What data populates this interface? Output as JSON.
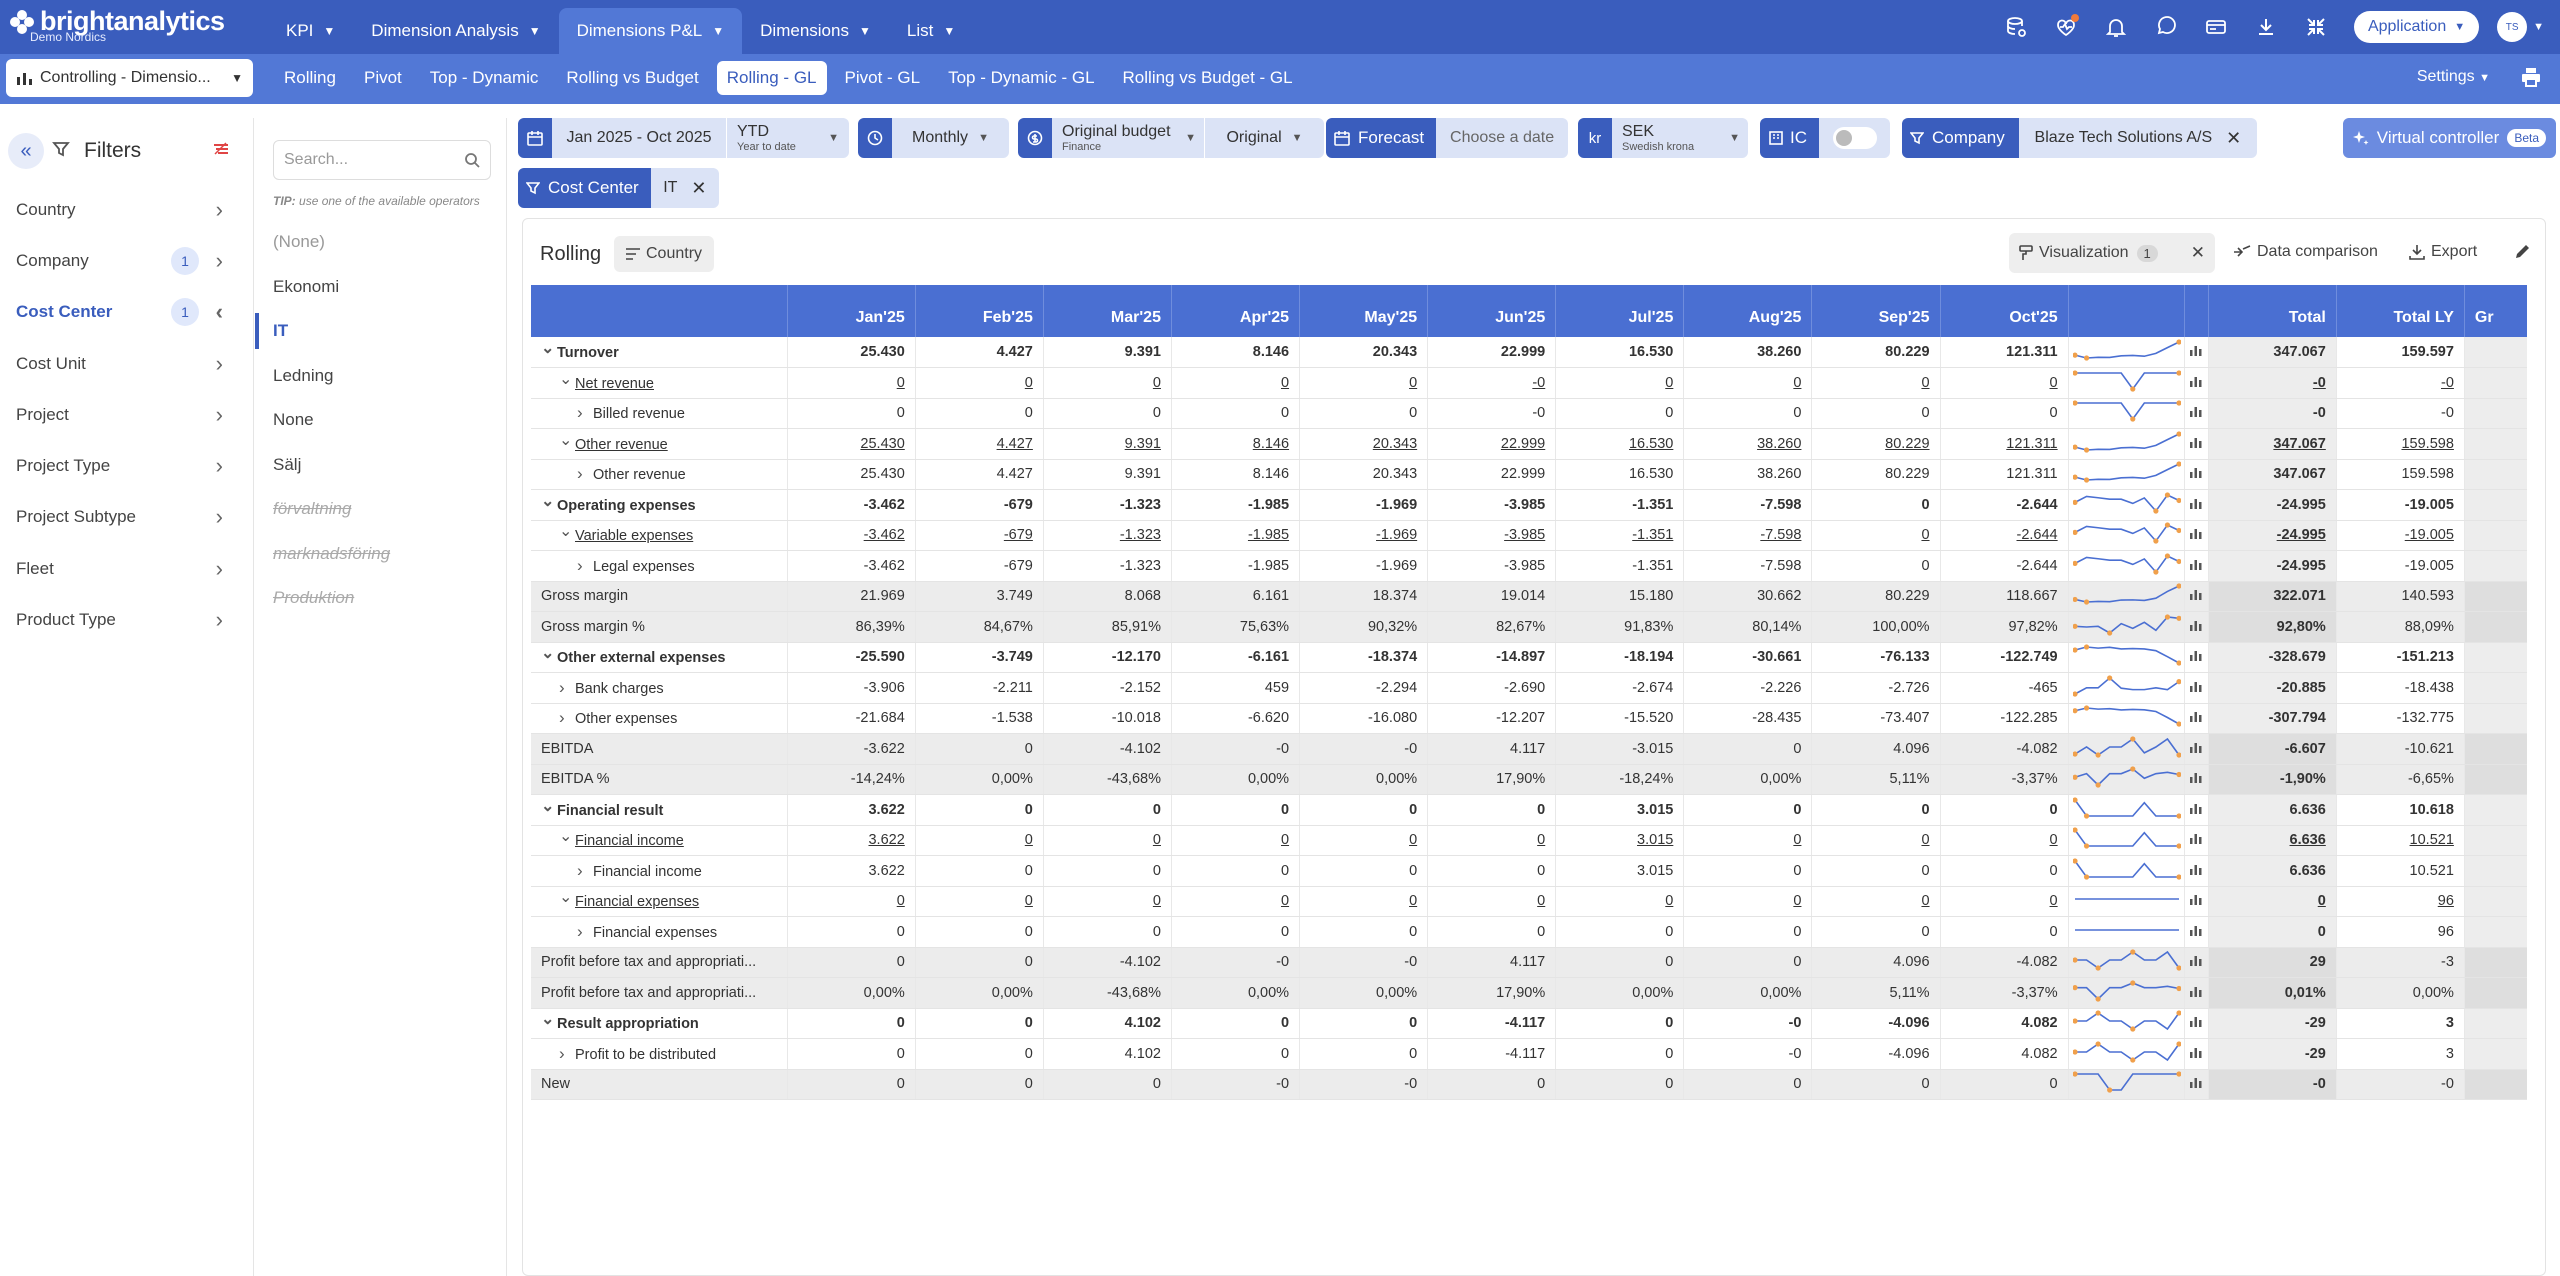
{
  "brand": {
    "name": "brightanalytics",
    "subtitle": "Demo Nordics"
  },
  "main_nav": [
    {
      "label": "KPI",
      "active": false
    },
    {
      "label": "Dimension Analysis",
      "active": false
    },
    {
      "label": "Dimensions P&L",
      "active": true
    },
    {
      "label": "Dimensions",
      "active": false
    },
    {
      "label": "List",
      "active": false
    }
  ],
  "top_right": {
    "application_label": "Application",
    "avatar_initials": "TS"
  },
  "context_select": "Controlling - Dimensio...",
  "sub_tabs": [
    {
      "label": "Rolling",
      "active": false
    },
    {
      "label": "Pivot",
      "active": false
    },
    {
      "label": "Top - Dynamic",
      "active": false
    },
    {
      "label": "Rolling vs Budget",
      "active": false
    },
    {
      "label": "Rolling - GL",
      "active": true
    },
    {
      "label": "Pivot - GL",
      "active": false
    },
    {
      "label": "Top - Dynamic - GL",
      "active": false
    },
    {
      "label": "Rolling vs Budget - GL",
      "active": false
    }
  ],
  "settings_label": "Settings",
  "filters": {
    "title": "Filters",
    "items": [
      {
        "label": "Country",
        "badge": "",
        "active": false
      },
      {
        "label": "Company",
        "badge": "1",
        "active": false
      },
      {
        "label": "Cost Center",
        "badge": "1",
        "active": true
      },
      {
        "label": "Cost Unit",
        "badge": "",
        "active": false
      },
      {
        "label": "Project",
        "badge": "",
        "active": false
      },
      {
        "label": "Project Type",
        "badge": "",
        "active": false
      },
      {
        "label": "Project Subtype",
        "badge": "",
        "active": false
      },
      {
        "label": "Fleet",
        "badge": "",
        "active": false
      },
      {
        "label": "Product Type",
        "badge": "",
        "active": false
      }
    ]
  },
  "value_list": {
    "search_placeholder": "Search...",
    "tip_prefix": "TIP:",
    "tip_text": "use one of the available operators",
    "values": [
      {
        "label": "(None)",
        "state": "muted"
      },
      {
        "label": "Ekonomi",
        "state": "normal"
      },
      {
        "label": "IT",
        "state": "selected"
      },
      {
        "label": "Ledning",
        "state": "normal"
      },
      {
        "label": "None",
        "state": "normal"
      },
      {
        "label": "Sälj",
        "state": "normal"
      },
      {
        "label": "förvaltning",
        "state": "struck"
      },
      {
        "label": "marknadsföring",
        "state": "struck"
      },
      {
        "label": "Produktion",
        "state": "struck"
      }
    ]
  },
  "controls": {
    "period": "Jan 2025 - Oct 2025",
    "ytd": "YTD",
    "ytd_sub": "Year to date",
    "interval": "Monthly",
    "budget": "Original budget",
    "budget_sub": "Finance",
    "budget_version": "Original",
    "forecast_label": "Forecast",
    "forecast_placeholder": "Choose a date",
    "currency_symbol": "kr",
    "currency": "SEK",
    "currency_sub": "Swedish krona",
    "ic_label": "IC",
    "company_label": "Company",
    "company_value": "Blaze Tech Solutions A/S",
    "cost_center_label": "Cost Center",
    "cost_center_value": "IT",
    "virtual_controller": "Virtual controller",
    "beta": "Beta"
  },
  "panel": {
    "title": "Rolling",
    "group_chip": "Country",
    "visualization": "Visualization",
    "visualization_count": "1",
    "data_comparison": "Data comparison",
    "export": "Export"
  },
  "table": {
    "columns": [
      "Jan'25",
      "Feb'25",
      "Mar'25",
      "Apr'25",
      "May'25",
      "Jun'25",
      "Jul'25",
      "Aug'25",
      "Sep'25",
      "Oct'25"
    ],
    "total_header": "Total",
    "total_ly_header": "Total LY",
    "extra_header": "Gr",
    "rows": [
      {
        "label": "Turnover",
        "level": 0,
        "caret": "down",
        "style": "bold",
        "values": [
          "25.430",
          "4.427",
          "9.391",
          "8.146",
          "20.343",
          "22.999",
          "16.530",
          "38.260",
          "80.229",
          "121.311"
        ],
        "total": "347.067",
        "total_ly": "159.597",
        "spark": [
          25,
          4,
          9,
          8,
          20,
          23,
          17,
          38,
          80,
          121
        ]
      },
      {
        "label": "Net revenue",
        "level": 1,
        "caret": "down",
        "style": "ul",
        "values": [
          "0",
          "0",
          "0",
          "0",
          "0",
          "-0",
          "0",
          "0",
          "0",
          "0"
        ],
        "total": "-0",
        "total_ly": "-0",
        "spark": [
          0,
          0,
          0,
          0,
          0,
          -1,
          0,
          0,
          0,
          0
        ]
      },
      {
        "label": "Billed revenue",
        "level": 2,
        "caret": "right",
        "style": "",
        "values": [
          "0",
          "0",
          "0",
          "0",
          "0",
          "-0",
          "0",
          "0",
          "0",
          "0"
        ],
        "total": "-0",
        "total_ly": "-0",
        "spark": [
          0,
          0,
          0,
          0,
          0,
          -1,
          0,
          0,
          0,
          0
        ]
      },
      {
        "label": "Other revenue",
        "level": 1,
        "caret": "down",
        "style": "ul",
        "values": [
          "25.430",
          "4.427",
          "9.391",
          "8.146",
          "20.343",
          "22.999",
          "16.530",
          "38.260",
          "80.229",
          "121.311"
        ],
        "total": "347.067",
        "total_ly": "159.598",
        "spark": [
          25,
          4,
          9,
          8,
          20,
          23,
          17,
          38,
          80,
          121
        ]
      },
      {
        "label": "Other revenue",
        "level": 2,
        "caret": "right",
        "style": "",
        "values": [
          "25.430",
          "4.427",
          "9.391",
          "8.146",
          "20.343",
          "22.999",
          "16.530",
          "38.260",
          "80.229",
          "121.311"
        ],
        "total": "347.067",
        "total_ly": "159.598",
        "spark": [
          25,
          4,
          9,
          8,
          20,
          23,
          17,
          38,
          80,
          121
        ]
      },
      {
        "label": "Operating expenses",
        "level": 0,
        "caret": "down",
        "style": "bold",
        "values": [
          "-3.462",
          "-679",
          "-1.323",
          "-1.985",
          "-1.969",
          "-3.985",
          "-1.351",
          "-7.598",
          "0",
          "-2.644"
        ],
        "total": "-24.995",
        "total_ly": "-19.005",
        "spark": [
          -3.5,
          -0.7,
          -1.3,
          -2,
          -2,
          -4,
          -1.4,
          -7.6,
          0,
          -2.6
        ]
      },
      {
        "label": "Variable expenses",
        "level": 1,
        "caret": "down",
        "style": "ul",
        "values": [
          "-3.462",
          "-679",
          "-1.323",
          "-1.985",
          "-1.969",
          "-3.985",
          "-1.351",
          "-7.598",
          "0",
          "-2.644"
        ],
        "total": "-24.995",
        "total_ly": "-19.005",
        "spark": [
          -3.5,
          -0.7,
          -1.3,
          -2,
          -2,
          -4,
          -1.4,
          -7.6,
          0,
          -2.6
        ]
      },
      {
        "label": "Legal expenses",
        "level": 2,
        "caret": "right",
        "style": "",
        "values": [
          "-3.462",
          "-679",
          "-1.323",
          "-1.985",
          "-1.969",
          "-3.985",
          "-1.351",
          "-7.598",
          "0",
          "-2.644"
        ],
        "total": "-24.995",
        "total_ly": "-19.005",
        "spark": [
          -3.5,
          -0.7,
          -1.3,
          -2,
          -2,
          -4,
          -1.4,
          -7.6,
          0,
          -2.6
        ]
      },
      {
        "label": "Gross margin",
        "level": 0,
        "caret": "",
        "style": "grey",
        "values": [
          "21.969",
          "3.749",
          "8.068",
          "6.161",
          "18.374",
          "19.014",
          "15.180",
          "30.662",
          "80.229",
          "118.667"
        ],
        "total": "322.071",
        "total_ly": "140.593",
        "spark": [
          22,
          3.7,
          8,
          6,
          18,
          19,
          15,
          31,
          80,
          119
        ]
      },
      {
        "label": "Gross margin %",
        "level": 0,
        "caret": "",
        "style": "grey",
        "values": [
          "86,39%",
          "84,67%",
          "85,91%",
          "75,63%",
          "90,32%",
          "82,67%",
          "91,83%",
          "80,14%",
          "100,00%",
          "97,82%"
        ],
        "total": "92,80%",
        "total_ly": "88,09%",
        "spark": [
          86,
          85,
          86,
          76,
          90,
          83,
          92,
          80,
          100,
          98
        ]
      },
      {
        "label": "Other external expenses",
        "level": 0,
        "caret": "down",
        "style": "bold",
        "values": [
          "-25.590",
          "-3.749",
          "-12.170",
          "-6.161",
          "-18.374",
          "-14.897",
          "-18.194",
          "-30.661",
          "-76.133",
          "-122.749"
        ],
        "total": "-328.679",
        "total_ly": "-151.213",
        "spark": [
          -26,
          -3.7,
          -12,
          -6,
          -18,
          -15,
          -18,
          -31,
          -76,
          -123
        ]
      },
      {
        "label": "Bank charges",
        "level": 1,
        "caret": "right",
        "style": "",
        "values": [
          "-3.906",
          "-2.211",
          "-2.152",
          "459",
          "-2.294",
          "-2.690",
          "-2.674",
          "-2.226",
          "-2.726",
          "-465"
        ],
        "total": "-20.885",
        "total_ly": "-18.438",
        "spark": [
          -3.9,
          -2.2,
          -2.2,
          0.5,
          -2.3,
          -2.7,
          -2.7,
          -2.2,
          -2.7,
          -0.5
        ]
      },
      {
        "label": "Other expenses",
        "level": 1,
        "caret": "right",
        "style": "",
        "values": [
          "-21.684",
          "-1.538",
          "-10.018",
          "-6.620",
          "-16.080",
          "-12.207",
          "-15.520",
          "-28.435",
          "-73.407",
          "-122.285"
        ],
        "total": "-307.794",
        "total_ly": "-132.775",
        "spark": [
          -22,
          -1.5,
          -10,
          -6.6,
          -16,
          -12,
          -15.5,
          -28,
          -73,
          -122
        ]
      },
      {
        "label": "EBITDA",
        "level": 0,
        "caret": "",
        "style": "grey",
        "values": [
          "-3.622",
          "0",
          "-4.102",
          "-0",
          "-0",
          "4.117",
          "-3.015",
          "0",
          "4.096",
          "-4.082"
        ],
        "total": "-6.607",
        "total_ly": "-10.621",
        "spark": [
          -3.6,
          0,
          -4.1,
          0,
          0,
          4.1,
          -3,
          0,
          4.1,
          -4.1
        ]
      },
      {
        "label": "EBITDA %",
        "level": 0,
        "caret": "",
        "style": "grey",
        "values": [
          "-14,24%",
          "0,00%",
          "-43,68%",
          "0,00%",
          "0,00%",
          "17,90%",
          "-18,24%",
          "0,00%",
          "5,11%",
          "-3,37%"
        ],
        "total": "-1,90%",
        "total_ly": "-6,65%",
        "spark": [
          -14,
          0,
          -44,
          0,
          0,
          18,
          -18,
          0,
          5,
          -3.4
        ]
      },
      {
        "label": "Financial result",
        "level": 0,
        "caret": "down",
        "style": "bold",
        "values": [
          "3.622",
          "0",
          "0",
          "0",
          "0",
          "0",
          "3.015",
          "0",
          "0",
          "0"
        ],
        "total": "6.636",
        "total_ly": "10.618",
        "spark": [
          3.6,
          0,
          0,
          0,
          0,
          0,
          3,
          0,
          0,
          0
        ]
      },
      {
        "label": "Financial income",
        "level": 1,
        "caret": "down",
        "style": "ul",
        "values": [
          "3.622",
          "0",
          "0",
          "0",
          "0",
          "0",
          "3.015",
          "0",
          "0",
          "0"
        ],
        "total": "6.636",
        "total_ly": "10.521",
        "spark": [
          3.6,
          0,
          0,
          0,
          0,
          0,
          3,
          0,
          0,
          0
        ]
      },
      {
        "label": "Financial income",
        "level": 2,
        "caret": "right",
        "style": "",
        "values": [
          "3.622",
          "0",
          "0",
          "0",
          "0",
          "0",
          "3.015",
          "0",
          "0",
          "0"
        ],
        "total": "6.636",
        "total_ly": "10.521",
        "spark": [
          3.6,
          0,
          0,
          0,
          0,
          0,
          3,
          0,
          0,
          0
        ]
      },
      {
        "label": "Financial expenses",
        "level": 1,
        "caret": "down",
        "style": "ul",
        "values": [
          "0",
          "0",
          "0",
          "0",
          "0",
          "0",
          "0",
          "0",
          "0",
          "0"
        ],
        "total": "0",
        "total_ly": "96",
        "spark": [
          0,
          0,
          0,
          0,
          0,
          0,
          0,
          0,
          0,
          0
        ]
      },
      {
        "label": "Financial expenses",
        "level": 2,
        "caret": "right",
        "style": "",
        "values": [
          "0",
          "0",
          "0",
          "0",
          "0",
          "0",
          "0",
          "0",
          "0",
          "0"
        ],
        "total": "0",
        "total_ly": "96",
        "spark": [
          0,
          0,
          0,
          0,
          0,
          0,
          0,
          0,
          0,
          0
        ]
      },
      {
        "label": "Profit before tax and appropriati...",
        "level": 0,
        "caret": "",
        "style": "grey",
        "values": [
          "0",
          "0",
          "-4.102",
          "-0",
          "-0",
          "4.117",
          "0",
          "0",
          "4.096",
          "-4.082"
        ],
        "total": "29",
        "total_ly": "-3",
        "spark": [
          0,
          0,
          -4.1,
          0,
          0,
          4.1,
          0,
          0,
          4.1,
          -4.1
        ]
      },
      {
        "label": "Profit before tax and appropriati...",
        "level": 0,
        "caret": "",
        "style": "grey",
        "values": [
          "0,00%",
          "0,00%",
          "-43,68%",
          "0,00%",
          "0,00%",
          "17,90%",
          "0,00%",
          "0,00%",
          "5,11%",
          "-3,37%"
        ],
        "total": "0,01%",
        "total_ly": "0,00%",
        "spark": [
          0,
          0,
          -44,
          0,
          0,
          18,
          0,
          0,
          5,
          -3.4
        ]
      },
      {
        "label": "Result appropriation",
        "level": 0,
        "caret": "down",
        "style": "bold",
        "values": [
          "0",
          "0",
          "4.102",
          "0",
          "0",
          "-4.117",
          "0",
          "-0",
          "-4.096",
          "4.082"
        ],
        "total": "-29",
        "total_ly": "3",
        "spark": [
          0,
          0,
          4.1,
          0,
          0,
          -4.1,
          0,
          0,
          -4.1,
          4.1
        ]
      },
      {
        "label": "Profit to be distributed",
        "level": 1,
        "caret": "right",
        "style": "",
        "values": [
          "0",
          "0",
          "4.102",
          "0",
          "0",
          "-4.117",
          "0",
          "-0",
          "-4.096",
          "4.082"
        ],
        "total": "-29",
        "total_ly": "3",
        "spark": [
          0,
          0,
          4.1,
          0,
          0,
          -4.1,
          0,
          0,
          -4.1,
          4.1
        ]
      },
      {
        "label": "New",
        "level": 0,
        "caret": "",
        "style": "grey",
        "values": [
          "0",
          "0",
          "0",
          "-0",
          "-0",
          "0",
          "0",
          "0",
          "0",
          "0"
        ],
        "total": "-0",
        "total_ly": "-0",
        "spark": [
          0,
          0,
          0,
          -1,
          -1,
          0,
          0,
          0,
          0,
          0
        ]
      }
    ]
  },
  "colors": {
    "primary": "#3a5dbd",
    "nav_light": "#5278d6",
    "header": "#4a6fd2",
    "spark_line": "#4a6fd2",
    "spark_marker": "#f0a04b",
    "notification_dot": "#f07a3a"
  }
}
